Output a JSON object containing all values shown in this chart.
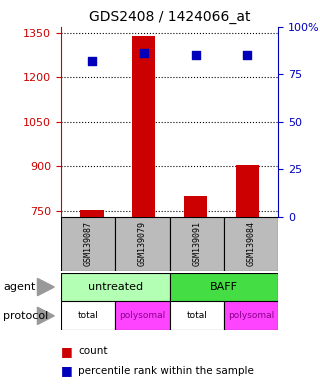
{
  "title": "GDS2408 / 1424066_at",
  "samples": [
    "GSM139087",
    "GSM139079",
    "GSM139091",
    "GSM139084"
  ],
  "counts": [
    755,
    1340,
    800,
    905
  ],
  "percentile_ranks": [
    82,
    86,
    85,
    85
  ],
  "ylim_left": [
    730,
    1370
  ],
  "yticks_left": [
    750,
    900,
    1050,
    1200,
    1350
  ],
  "ylim_right": [
    0,
    100
  ],
  "yticks_right": [
    0,
    25,
    50,
    75,
    100
  ],
  "yticklabels_right": [
    "0",
    "25",
    "50",
    "75",
    "100%"
  ],
  "bar_color": "#cc0000",
  "dot_color": "#0000bb",
  "agent_colors": [
    "#b3ffb3",
    "#44dd44"
  ],
  "protocol_colors": [
    "#ffffff",
    "#ff44ff",
    "#ffffff",
    "#ff44ff"
  ],
  "protocol_labels": [
    "total",
    "polysomal",
    "total",
    "polysomal"
  ],
  "protocol_label_colors": [
    "#000000",
    "#880088",
    "#000000",
    "#880088"
  ],
  "left_axis_color": "#cc0000",
  "right_axis_color": "#0000bb",
  "sample_box_color": "#bbbbbb",
  "legend_count_color": "#cc0000",
  "legend_pct_color": "#0000bb"
}
